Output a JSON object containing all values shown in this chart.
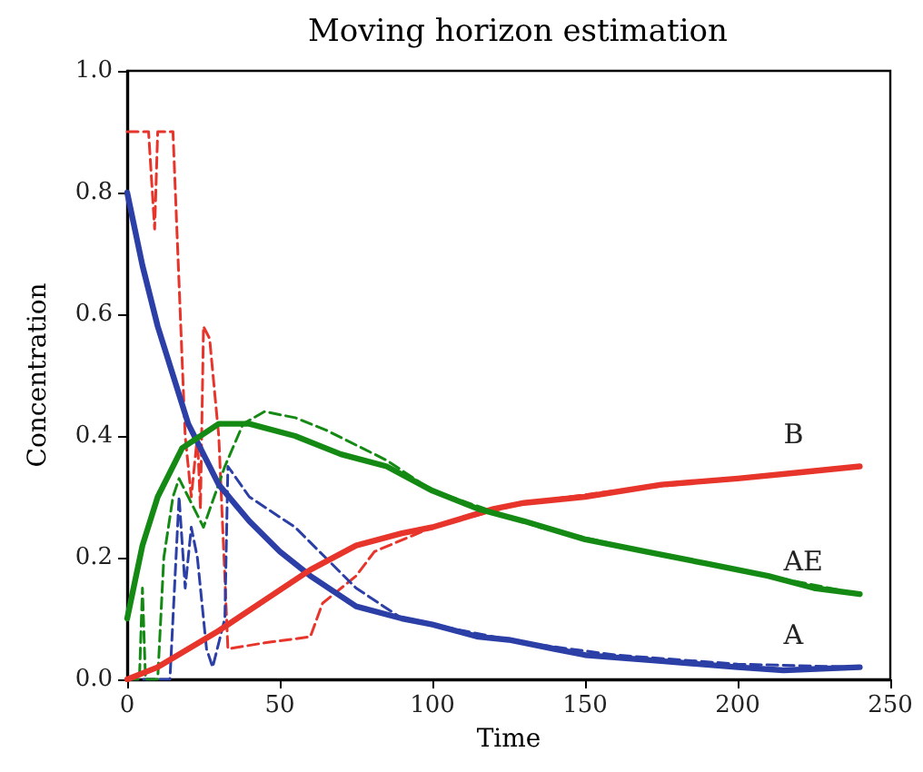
{
  "chart_data": {
    "type": "line",
    "title": "Moving horizon estimation",
    "xlabel": "Time",
    "ylabel": "Concentration",
    "xlim": [
      0,
      250
    ],
    "ylim": [
      0,
      1
    ],
    "xticks": [
      0,
      50,
      100,
      150,
      200,
      250
    ],
    "yticks": [
      {
        "value": 0,
        "label": "0.0"
      },
      {
        "value": 0.2,
        "label": "0.2"
      },
      {
        "value": 0.4,
        "label": "0.4"
      },
      {
        "value": 0.6,
        "label": "0.6"
      },
      {
        "value": 0.8,
        "label": "0.8"
      },
      {
        "value": 1,
        "label": "1.0"
      }
    ],
    "grid": false,
    "legend": false,
    "marker": "none",
    "series": [
      {
        "name": "A",
        "color": "#2b3fa6",
        "line_style": "solid",
        "x": [
          0,
          5,
          10,
          15,
          20,
          25,
          30,
          40,
          50,
          60,
          75,
          90,
          100,
          115,
          125,
          140,
          150,
          175,
          200,
          215,
          240
        ],
        "values": [
          0.8,
          0.68,
          0.58,
          0.5,
          0.42,
          0.37,
          0.32,
          0.26,
          0.21,
          0.17,
          0.12,
          0.1,
          0.09,
          0.07,
          0.065,
          0.05,
          0.04,
          0.03,
          0.02,
          0.015,
          0.02
        ]
      },
      {
        "name": "B",
        "color": "#e8352b",
        "line_style": "solid",
        "x": [
          0,
          10,
          20,
          30,
          45,
          60,
          75,
          90,
          100,
          120,
          130,
          150,
          175,
          200,
          220,
          240
        ],
        "values": [
          0,
          0.02,
          0.05,
          0.08,
          0.13,
          0.18,
          0.22,
          0.24,
          0.25,
          0.28,
          0.29,
          0.3,
          0.32,
          0.33,
          0.34,
          0.35
        ]
      },
      {
        "name": "AE",
        "color": "#148a14",
        "line_style": "solid",
        "x": [
          0,
          5,
          10,
          18,
          30,
          40,
          55,
          70,
          85,
          100,
          115,
          130,
          150,
          170,
          190,
          210,
          225,
          240
        ],
        "values": [
          0.1,
          0.22,
          0.3,
          0.38,
          0.42,
          0.42,
          0.4,
          0.37,
          0.35,
          0.31,
          0.28,
          0.26,
          0.23,
          0.21,
          0.19,
          0.17,
          0.15,
          0.14
        ]
      },
      {
        "color": "#e8352b",
        "line_style": "dashed",
        "x": [
          0,
          7,
          9,
          10,
          15,
          19,
          21,
          23,
          24,
          25,
          27,
          30,
          33,
          45,
          60,
          64,
          75,
          81,
          100,
          130,
          160,
          200,
          240
        ],
        "values": [
          0.9,
          0.9,
          0.74,
          0.9,
          0.9,
          0.4,
          0.3,
          0.4,
          0.28,
          0.58,
          0.56,
          0.4,
          0.05,
          0.06,
          0.07,
          0.125,
          0.17,
          0.21,
          0.25,
          0.29,
          0.31,
          0.33,
          0.35
        ]
      },
      {
        "color": "#2b3fa6",
        "line_style": "dashed",
        "x": [
          0,
          14,
          17,
          19,
          21,
          23,
          26,
          28,
          32,
          33,
          40,
          55,
          65,
          75,
          90,
          100,
          130,
          160,
          200,
          240
        ],
        "values": [
          0,
          0,
          0.3,
          0.15,
          0.25,
          0.2,
          0.05,
          0.02,
          0.1,
          0.35,
          0.3,
          0.25,
          0.2,
          0.15,
          0.1,
          0.09,
          0.06,
          0.04,
          0.025,
          0.02
        ]
      },
      {
        "color": "#148a14",
        "line_style": "dashed",
        "x": [
          0,
          4,
          5,
          6,
          10,
          12,
          15,
          17,
          20,
          25,
          32,
          38,
          45,
          55,
          65,
          85,
          100,
          135,
          170,
          210,
          240
        ],
        "values": [
          0,
          0,
          0.15,
          0,
          0,
          0.2,
          0.3,
          0.33,
          0.3,
          0.25,
          0.35,
          0.42,
          0.44,
          0.43,
          0.41,
          0.36,
          0.31,
          0.25,
          0.21,
          0.17,
          0.14
        ]
      }
    ]
  }
}
